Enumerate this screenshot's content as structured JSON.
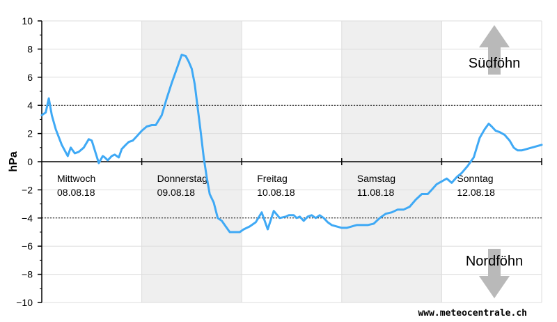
{
  "chart_data": {
    "type": "line",
    "title": "",
    "xlabel": "",
    "ylabel": "hPa",
    "ylim": [
      -10,
      10
    ],
    "yticks": [
      10,
      8,
      6,
      4,
      2,
      0,
      -2,
      -4,
      -6,
      -8,
      -10
    ],
    "ytick_labels": [
      "10",
      "8",
      "6",
      "4",
      "2",
      "0",
      "−2",
      "−4",
      "−6",
      "−8",
      "−10"
    ],
    "threshold_lines": [
      4,
      -4
    ],
    "grid": true,
    "shaded_days": [
      1,
      3
    ],
    "days": [
      {
        "name": "Mittwoch",
        "date": "08.08.18"
      },
      {
        "name": "Donnerstag",
        "date": "09.08.18"
      },
      {
        "name": "Freitag",
        "date": "10.08.18"
      },
      {
        "name": "Samstag",
        "date": "11.08.18"
      },
      {
        "name": "Sonntag",
        "date": "12.08.18"
      }
    ],
    "x_range_days": [
      0,
      5
    ],
    "series": [
      {
        "color": "#3fa9f5",
        "x": [
          0.0,
          0.04,
          0.07,
          0.1,
          0.14,
          0.2,
          0.26,
          0.29,
          0.33,
          0.37,
          0.42,
          0.47,
          0.5,
          0.54,
          0.57,
          0.61,
          0.63,
          0.66,
          0.7,
          0.73,
          0.77,
          0.8,
          0.84,
          0.87,
          0.91,
          0.95,
          1.0,
          1.05,
          1.1,
          1.14,
          1.2,
          1.25,
          1.3,
          1.35,
          1.4,
          1.44,
          1.47,
          1.5,
          1.53,
          1.56,
          1.59,
          1.62,
          1.65,
          1.68,
          1.72,
          1.76,
          1.8,
          1.84,
          1.88,
          1.92,
          1.95,
          1.98,
          2.02,
          2.08,
          2.14,
          2.2,
          2.26,
          2.32,
          2.38,
          2.44,
          2.47,
          2.5,
          2.52,
          2.55,
          2.58,
          2.62,
          2.66,
          2.7,
          2.74,
          2.78,
          2.82,
          2.86,
          2.9,
          2.95,
          3.0,
          3.05,
          3.1,
          3.15,
          3.2,
          3.26,
          3.32,
          3.38,
          3.44,
          3.5,
          3.56,
          3.62,
          3.68,
          3.74,
          3.8,
          3.86,
          3.9,
          3.95,
          4.0,
          4.05,
          4.1,
          4.15,
          4.2,
          4.26,
          4.32,
          4.38,
          4.43,
          4.47,
          4.5,
          4.54,
          4.58,
          4.63,
          4.68,
          4.72,
          4.76,
          4.8,
          4.85,
          4.9,
          4.95,
          5.0
        ],
        "y": [
          3.3,
          3.5,
          4.5,
          3.3,
          2.3,
          1.2,
          0.4,
          1.0,
          0.6,
          0.7,
          1.0,
          1.6,
          1.5,
          0.6,
          -0.1,
          0.4,
          0.3,
          0.1,
          0.4,
          0.5,
          0.3,
          0.9,
          1.2,
          1.4,
          1.5,
          1.8,
          2.2,
          2.5,
          2.6,
          2.6,
          3.3,
          4.5,
          5.6,
          6.6,
          7.6,
          7.5,
          7.1,
          6.6,
          5.5,
          3.8,
          2.1,
          0.3,
          -1.1,
          -2.3,
          -2.9,
          -4.0,
          -4.2,
          -4.6,
          -5.0,
          -5.0,
          -5.0,
          -5.0,
          -4.8,
          -4.6,
          -4.3,
          -3.6,
          -4.8,
          -3.5,
          -4.0,
          -3.9,
          -3.8,
          -3.8,
          -3.8,
          -4.0,
          -3.9,
          -4.2,
          -3.9,
          -3.8,
          -4.0,
          -3.8,
          -4.0,
          -4.3,
          -4.5,
          -4.6,
          -4.7,
          -4.7,
          -4.6,
          -4.5,
          -4.5,
          -4.5,
          -4.4,
          -4.0,
          -3.7,
          -3.6,
          -3.4,
          -3.4,
          -3.2,
          -2.7,
          -2.3,
          -2.3,
          -2.0,
          -1.6,
          -1.4,
          -1.2,
          -1.5,
          -1.1,
          -0.8,
          -0.3,
          0.3,
          1.7,
          2.3,
          2.7,
          2.5,
          2.2,
          2.1,
          1.9,
          1.5,
          1.0,
          0.8,
          0.8,
          0.9,
          1.0,
          1.1,
          1.2
        ]
      }
    ]
  },
  "annotations": {
    "south": "Südföhn",
    "north": "Nordföhn"
  },
  "credit": "www.meteocentrale.ch",
  "colors": {
    "line": "#3fa9f5",
    "shade": "#efefef",
    "grid": "#dddddd",
    "arrow": "#b9b9b9"
  }
}
